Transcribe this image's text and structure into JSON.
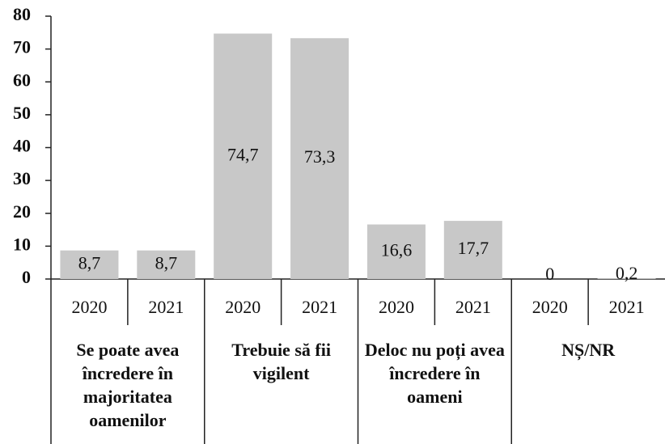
{
  "chart_data": {
    "type": "bar",
    "categories": [
      "2020",
      "2021",
      "2020",
      "2021",
      "2020",
      "2021",
      "2020",
      "2021"
    ],
    "groups": [
      "Se poate avea încredere în majoritatea oamenilor",
      "Trebuie să fii vigilent",
      "Deloc nu poți avea încredere în oameni",
      "NȘ/NR"
    ],
    "values": [
      8.7,
      8.7,
      74.7,
      73.3,
      16.6,
      17.7,
      0,
      0.2
    ],
    "value_labels": [
      "8,7",
      "8,7",
      "74,7",
      "73,3",
      "16,6",
      "17,7",
      "0",
      "0,2"
    ],
    "color": "#c8c8c8",
    "ylim": [
      0,
      80
    ],
    "yticks": [
      0,
      10,
      20,
      30,
      40,
      50,
      60,
      70,
      80
    ]
  }
}
